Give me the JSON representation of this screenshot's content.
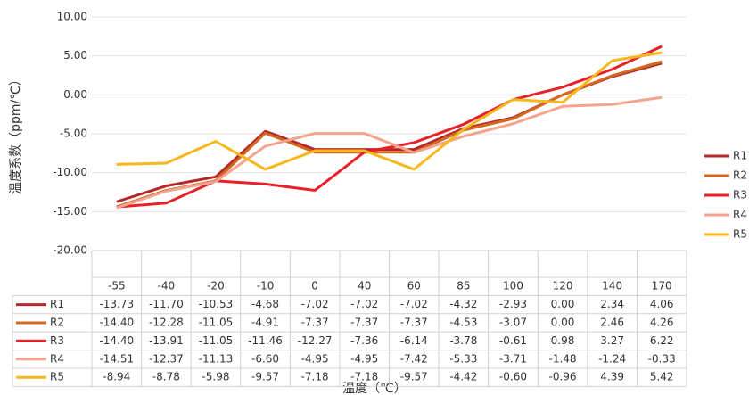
{
  "chart_data": {
    "type": "line",
    "y_label": "温度系数（ppm/℃）",
    "x_label": "温度（℃）",
    "categories": [
      "-55",
      "-40",
      "-20",
      "-10",
      "0",
      "40",
      "60",
      "85",
      "100",
      "120",
      "140",
      "170"
    ],
    "ylim": [
      -20,
      10
    ],
    "yticks": [
      {
        "value": -20,
        "label": "-20.00"
      },
      {
        "value": -15,
        "label": "-15.00"
      },
      {
        "value": -10,
        "label": "-10.00"
      },
      {
        "value": -5,
        "label": "-5.00"
      },
      {
        "value": 0,
        "label": "0.00"
      },
      {
        "value": 5,
        "label": "5.00"
      },
      {
        "value": 10,
        "label": "10.00"
      }
    ],
    "grid": true,
    "legend": "right",
    "series": [
      {
        "name": "R1",
        "color": "#b5282a",
        "values": [
          -13.73,
          -11.7,
          -10.53,
          -4.68,
          -7.02,
          -7.02,
          -7.02,
          -4.32,
          -2.93,
          0,
          2.34,
          4.06
        ],
        "value_labels": [
          "-13.73",
          "-11.70",
          "-10.53",
          "-4.68",
          "-7.02",
          "-7.02",
          "-7.02",
          "-4.32",
          "-2.93",
          "0.00",
          "2.34",
          "4.06"
        ]
      },
      {
        "name": "R2",
        "color": "#d2691e",
        "values": [
          -14.4,
          -12.28,
          -11.05,
          -4.91,
          -7.37,
          -7.37,
          -7.37,
          -4.53,
          -3.07,
          0,
          2.46,
          4.26
        ],
        "value_labels": [
          "-14.40",
          "-12.28",
          "-11.05",
          "-4.91",
          "-7.37",
          "-7.37",
          "-7.37",
          "-4.53",
          "-3.07",
          "0.00",
          "2.46",
          "4.26"
        ]
      },
      {
        "name": "R3",
        "color": "#e8202a",
        "values": [
          -14.4,
          -13.91,
          -11.05,
          -11.46,
          -12.27,
          -7.36,
          -6.14,
          -3.78,
          -0.61,
          0.98,
          3.27,
          6.22
        ],
        "value_labels": [
          "-14.40",
          "-13.91",
          "-11.05",
          "-11.46",
          "-12.27",
          "-7.36",
          "-6.14",
          "-3.78",
          "-0.61",
          "0.98",
          "3.27",
          "6.22"
        ]
      },
      {
        "name": "R4",
        "color": "#f4a48c",
        "values": [
          -14.51,
          -12.37,
          -11.13,
          -6.6,
          -4.95,
          -4.95,
          -7.42,
          -5.33,
          -3.71,
          -1.48,
          -1.24,
          -0.33
        ],
        "value_labels": [
          "-14.51",
          "-12.37",
          "-11.13",
          "-6.60",
          "-4.95",
          "-4.95",
          "-7.42",
          "-5.33",
          "-3.71",
          "-1.48",
          "-1.24",
          "-0.33"
        ]
      },
      {
        "name": "R5",
        "color": "#f6b81e",
        "values": [
          -8.94,
          -8.78,
          -5.98,
          -9.57,
          -7.18,
          -7.18,
          -9.57,
          -4.42,
          -0.6,
          -0.96,
          4.39,
          5.42
        ],
        "value_labels": [
          "-8.94",
          "-8.78",
          "-5.98",
          "-9.57",
          "-7.18",
          "-7.18",
          "-9.57",
          "-4.42",
          "-0.60",
          "-0.96",
          "4.39",
          "5.42"
        ]
      }
    ]
  }
}
